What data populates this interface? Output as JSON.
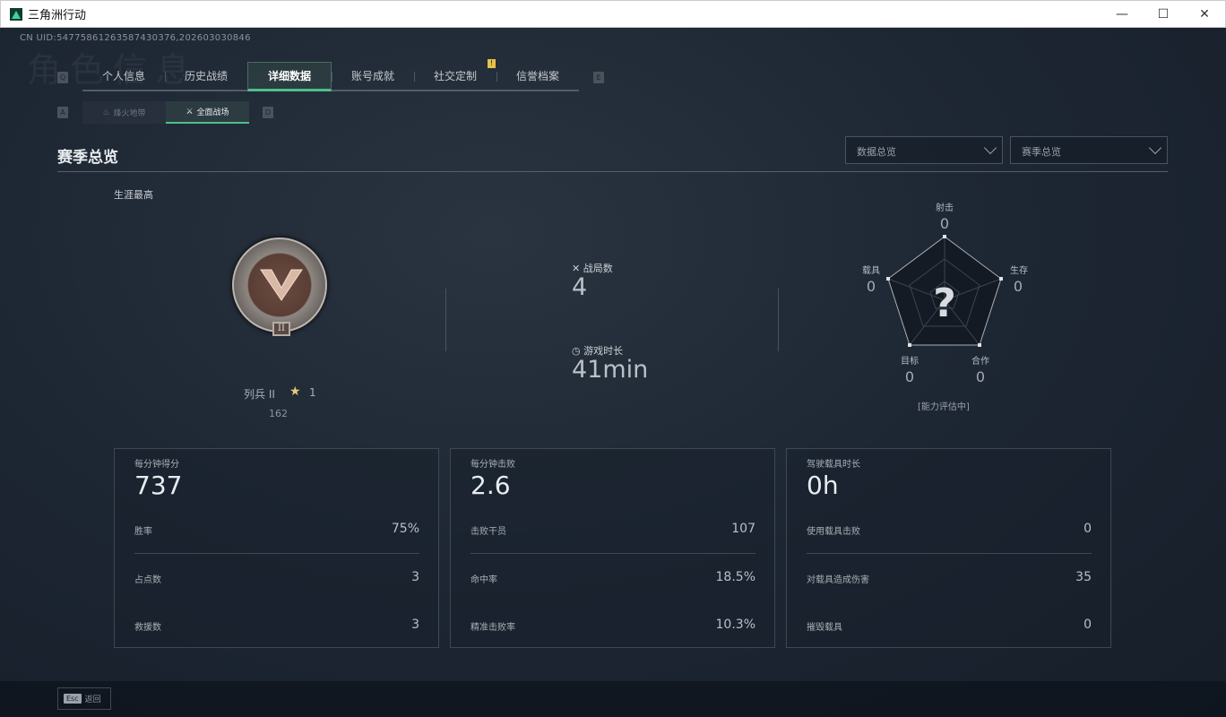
{
  "window": {
    "title": "三角洲行动",
    "minimize": "—",
    "maximize": "☐",
    "close": "✕"
  },
  "uid": "CN UID:5477586126358743037​6,202603030846",
  "ghost_title": "角色信息",
  "keys": {
    "prev_tab": "Q",
    "next_tab": "E",
    "prev_sub": "A",
    "next_sub": "D"
  },
  "tabs": [
    {
      "label": "个人信息"
    },
    {
      "label": "历史战绩"
    },
    {
      "label": "详细数据",
      "active": true
    },
    {
      "label": "账号成就"
    },
    {
      "label": "社交定制",
      "badge": "!"
    },
    {
      "label": "信誉档案"
    }
  ],
  "subtabs": [
    {
      "label": "烽火地带",
      "icon": "flame-icon"
    },
    {
      "label": "全面战场",
      "icon": "battlefield-icon",
      "active": true
    }
  ],
  "section_title": "赛季总览",
  "selects": [
    {
      "value": "数据总览"
    },
    {
      "value": "赛季总览"
    }
  ],
  "career": {
    "label": "生涯最高",
    "rank": "列兵 II",
    "rank_numeral": "II",
    "stars": "1",
    "points": "162"
  },
  "summary": {
    "matches_label": "战局数",
    "matches": "4",
    "playtime_label": "游戏时长",
    "playtime": "41min"
  },
  "radar": {
    "axes": [
      {
        "label": "射击",
        "value": "0"
      },
      {
        "label": "生存",
        "value": "0"
      },
      {
        "label": "合作",
        "value": "0"
      },
      {
        "label": "目标",
        "value": "0"
      },
      {
        "label": "载具",
        "value": "0"
      }
    ],
    "center": "?",
    "status": "[能力评估中]"
  },
  "cards": [
    {
      "title": "每分钟得分",
      "value": "737",
      "rows": [
        {
          "label": "胜率",
          "value": "75%"
        },
        {
          "label": "占点数",
          "value": "3"
        },
        {
          "label": "救援数",
          "value": "3"
        }
      ]
    },
    {
      "title": "每分钟击败",
      "value": "2.6",
      "rows": [
        {
          "label": "击败干员",
          "value": "107"
        },
        {
          "label": "命中率",
          "value": "18.5%"
        },
        {
          "label": "精准击败率",
          "value": "10.3%"
        }
      ]
    },
    {
      "title": "驾驶载具时长",
      "value": "0h",
      "rows": [
        {
          "label": "使用载具击败",
          "value": "0"
        },
        {
          "label": "对载具造成伤害",
          "value": "35"
        },
        {
          "label": "摧毁载具",
          "value": "0"
        }
      ]
    }
  ],
  "footer": {
    "key": "Esc",
    "label": "返回"
  },
  "colors": {
    "accent": "#4fbf8c",
    "badge": "#e6c14b",
    "background": "#1b2431"
  }
}
